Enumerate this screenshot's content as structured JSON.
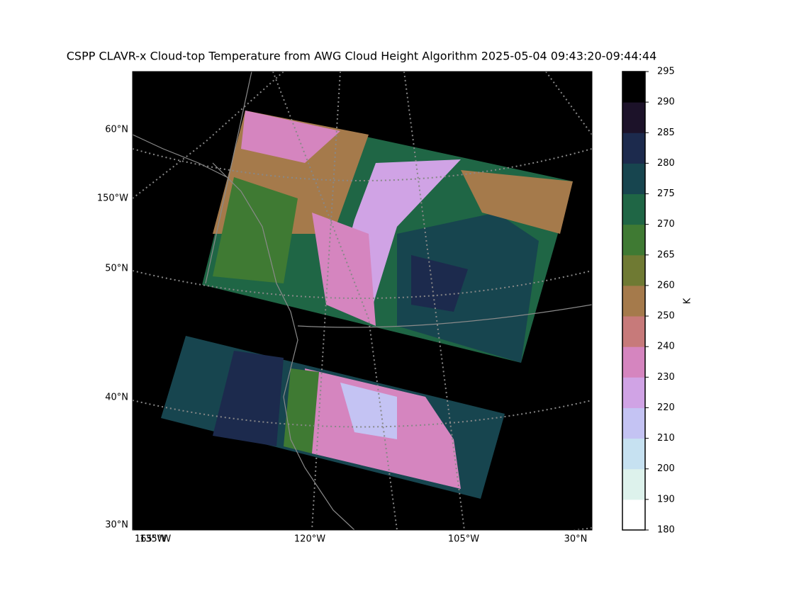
{
  "title": "CSPP CLAVR-x Cloud-top Temperature from AWG Cloud Height Algorithm 2025-05-04 09:43:20-09:44:44",
  "map": {
    "lat_labels": [
      "60°N",
      "50°N",
      "40°N",
      "30°N"
    ],
    "left_lon_labels": [
      "150°W"
    ],
    "bottom_lon_labels": [
      "165°W",
      "135°W",
      "120°W",
      "105°W",
      "30°N"
    ]
  },
  "colorbar": {
    "label": "K",
    "boundaries": [
      180,
      190,
      200,
      210,
      220,
      230,
      240,
      250,
      260,
      265,
      270,
      275,
      280,
      285,
      290,
      295
    ],
    "colors": [
      "#ffffff",
      "#ddf2ec",
      "#c6e1f1",
      "#c4c3f3",
      "#d0a3e5",
      "#d585bf",
      "#c77a7a",
      "#a57a4b",
      "#6f7a33",
      "#3f7a33",
      "#1f6645",
      "#17454f",
      "#1c2a4d",
      "#1c1229",
      "#000000"
    ]
  }
}
